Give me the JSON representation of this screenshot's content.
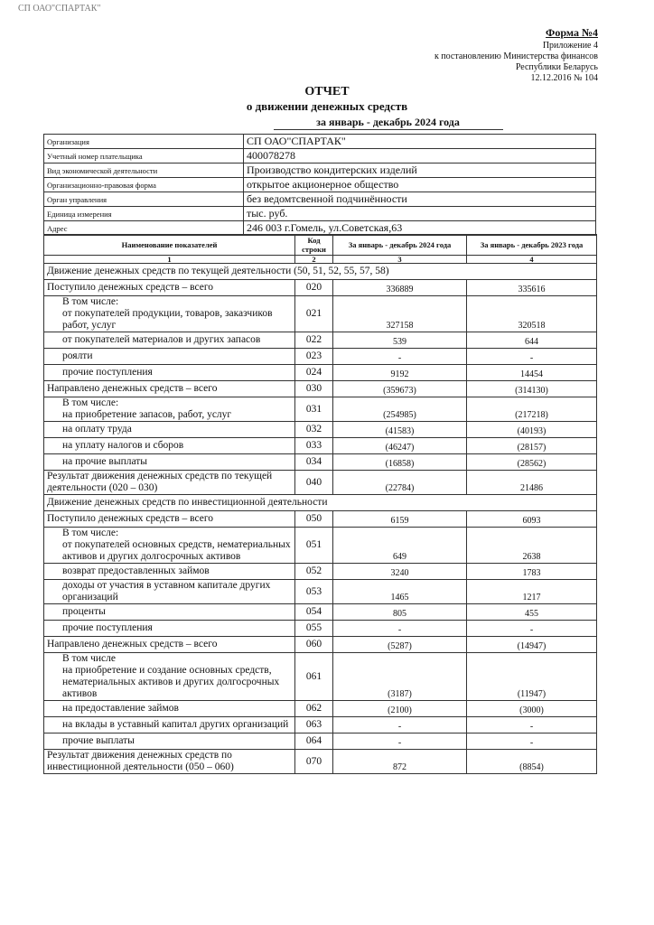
{
  "header": {
    "stamp": "СП ОАО\"СПАРТАК\"",
    "form": "Форма №4",
    "appendix": [
      "Приложение 4",
      "к постановлению Министерства финансов",
      "Республики Беларусь",
      "12.12.2016 № 104"
    ],
    "title": "ОТЧЕТ",
    "subtitle": "о движении денежных средств",
    "period": "за январь - декабрь 2024 года"
  },
  "info": {
    "rows": [
      [
        "Организация",
        "СП ОАО\"СПАРТАК\""
      ],
      [
        "Учетный номер плательщика",
        "400078278"
      ],
      [
        "Вид экономической деятельности",
        "Производство кондитерских изделий"
      ],
      [
        "Организационно-правовая форма",
        "открытое акционерное общество"
      ],
      [
        "Орган управления",
        "без ведомтсвенной подчинённости"
      ],
      [
        "Единица измерения",
        "тыс. руб."
      ],
      [
        "Адрес",
        "246 003 г.Гомель, ул.Советская,63"
      ]
    ]
  },
  "table": {
    "columns": [
      "Наименование показателей",
      "Код строки",
      "За январь - декабрь 2024 года",
      "За январь - декабрь 2023 года"
    ],
    "numbers": [
      "1",
      "2",
      "3",
      "4"
    ],
    "rows": [
      [
        "Движение денежных средств по текущей деятельности (50, 51, 52, 55, 57, 58)"
      ],
      [
        "Поступило денежных средств – всего",
        "020",
        "336889",
        "335616"
      ],
      [
        "В том числе:\nот покупателей продукции, товаров, заказчиков работ, услуг",
        "021",
        "327158",
        "320518"
      ],
      [
        "от покупателей материалов и других запасов",
        "022",
        "539",
        "644"
      ],
      [
        "роялти",
        "023",
        "-",
        "-"
      ],
      [
        "прочие поступления",
        "024",
        "9192",
        "14454"
      ],
      [
        "Направлено денежных средств – всего",
        "030",
        "(359673)",
        "(314130)"
      ],
      [
        "В том числе:\nна приобретение запасов, работ, услуг",
        "031",
        "(254985)",
        "(217218)"
      ],
      [
        "на оплату труда",
        "032",
        "(41583)",
        "(40193)"
      ],
      [
        "на уплату налогов и сборов",
        "033",
        "(46247)",
        "(28157)"
      ],
      [
        "на прочие выплаты",
        "034",
        "(16858)",
        "(28562)"
      ],
      [
        "Результат движения денежных средств по текущей деятельности (020 – 030)",
        "040",
        "(22784)",
        "21486"
      ],
      [
        "Движение денежных средств по инвестиционной деятельности"
      ],
      [
        "Поступило денежных средств – всего",
        "050",
        "6159",
        "6093"
      ],
      [
        "В том числе:\nот покупателей основных средств, нематериальных активов и других долгосрочных активов",
        "051",
        "649",
        "2638"
      ],
      [
        "возврат предоставленных займов",
        "052",
        "3240",
        "1783"
      ],
      [
        "доходы от участия в уставном капитале других организаций",
        "053",
        "1465",
        "1217"
      ],
      [
        "проценты",
        "054",
        "805",
        "455"
      ],
      [
        "прочие поступления",
        "055",
        "-",
        "-"
      ],
      [
        "Направлено денежных средств – всего",
        "060",
        "(5287)",
        "(14947)"
      ],
      [
        "В том числе\nна приобретение и создание основных средств, нематериальных активов и других долгосрочных активов",
        "061",
        "(3187)",
        "(11947)"
      ],
      [
        "на предоставление займов",
        "062",
        "(2100)",
        "(3000)"
      ],
      [
        "на вклады в уставный капитал других организаций",
        "063",
        "-",
        "-"
      ],
      [
        "прочие выплаты",
        "064",
        "-",
        "-"
      ],
      [
        "Результат движения денежных средств по инвестиционной деятельности (050 – 060)",
        "070",
        "872",
        "(8854)"
      ]
    ]
  }
}
